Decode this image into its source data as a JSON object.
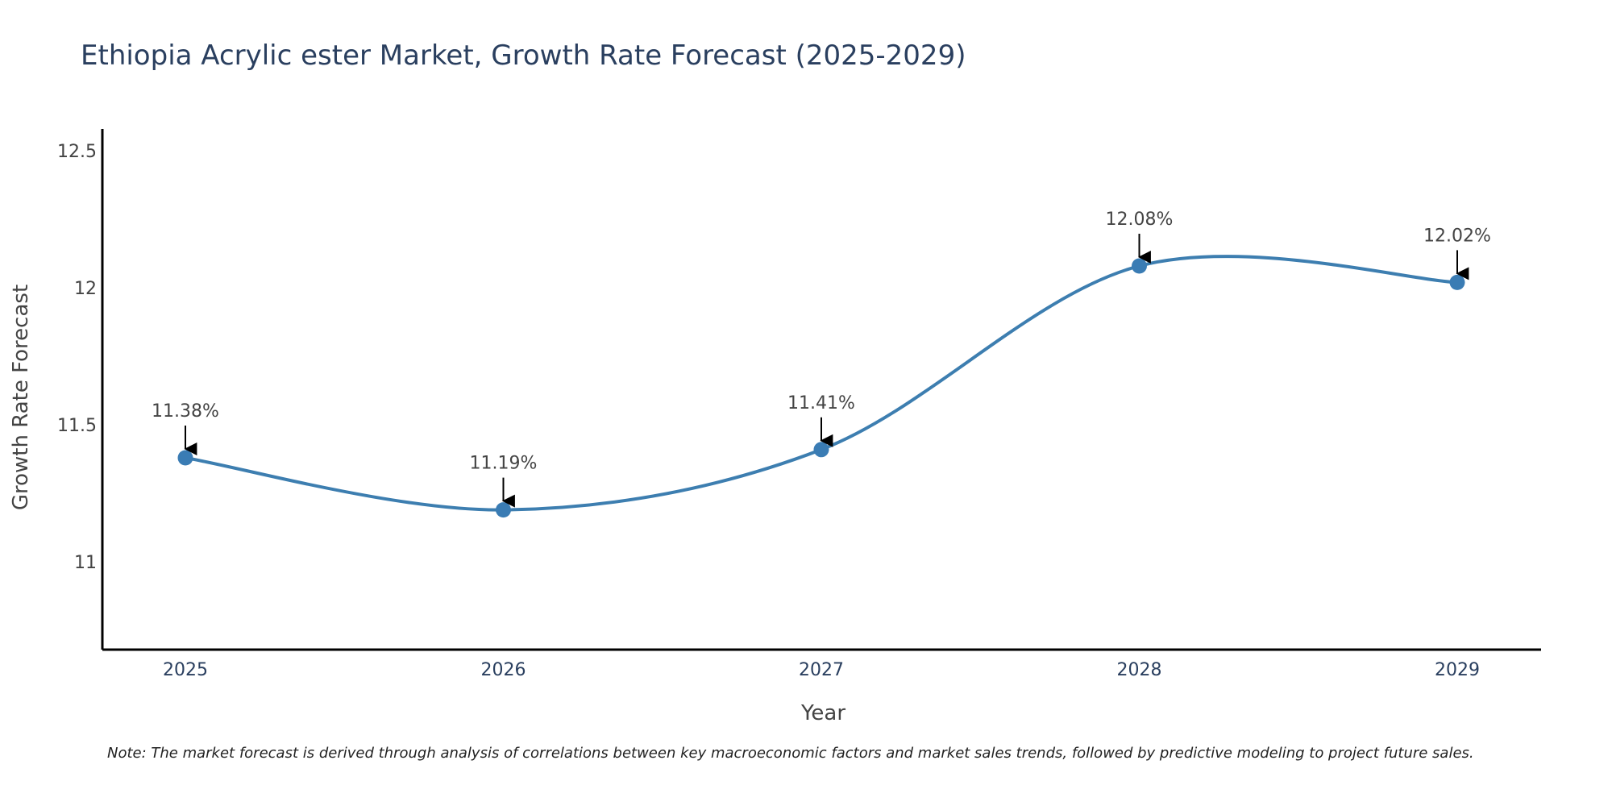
{
  "colors": {
    "series": "#3d7eb0",
    "marker": "#3a7cb4",
    "axis": "#000000",
    "arrow": "#000000"
  },
  "chart_data": {
    "type": "line",
    "title": "Ethiopia Acrylic ester Market, Growth Rate Forecast (2025-2029)",
    "xlabel": "Year",
    "ylabel": "Growth Rate Forecast",
    "categories": [
      "2025",
      "2026",
      "2027",
      "2028",
      "2029"
    ],
    "series": [
      {
        "name": "Growth Rate Forecast",
        "values": [
          11.38,
          11.19,
          11.41,
          12.08,
          12.02
        ],
        "labels": [
          "11.38%",
          "11.19%",
          "11.41%",
          "12.08%",
          "12.02%"
        ]
      }
    ],
    "ylim": [
      10.68,
      12.58
    ],
    "yticks": [
      11,
      11.5,
      12,
      12.5
    ],
    "ytick_labels": [
      "11",
      "11.5",
      "12",
      "12.5"
    ],
    "line_shape": "spline",
    "grid": false,
    "note": "Note: The market forecast is derived through analysis of correlations between key macroeconomic factors and market sales trends, followed by predictive modeling to project future sales."
  }
}
